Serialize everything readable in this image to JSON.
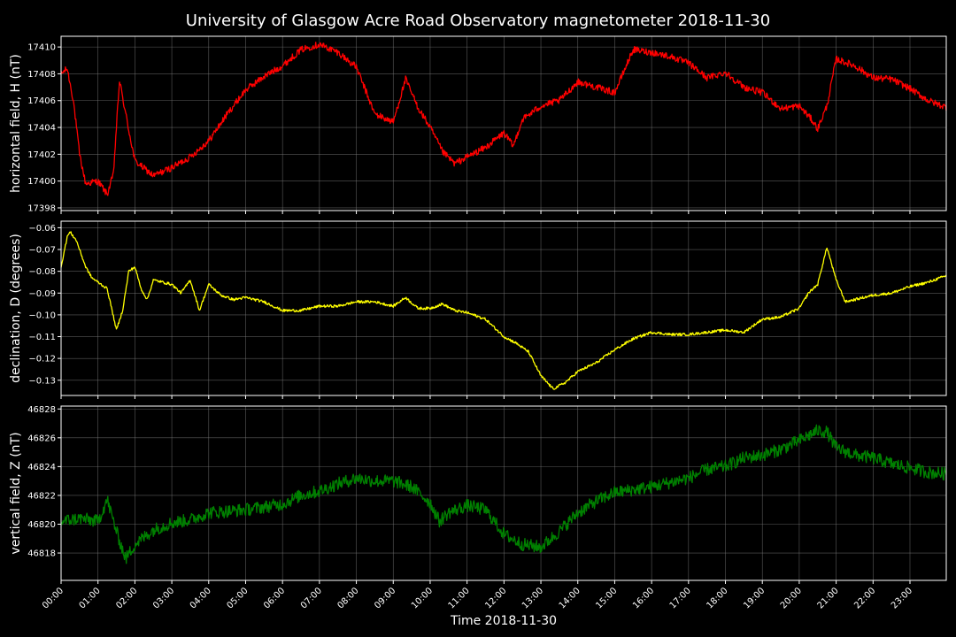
{
  "chart_data": {
    "type": "line",
    "title": "University of Glasgow Acre Road Observatory magnetometer 2018-11-30",
    "xlabel": "Time 2018-11-30",
    "x_ticks": [
      "00:00",
      "01:00",
      "02:00",
      "03:00",
      "04:00",
      "05:00",
      "06:00",
      "07:00",
      "08:00",
      "09:00",
      "10:00",
      "11:00",
      "12:00",
      "13:00",
      "14:00",
      "15:00",
      "16:00",
      "17:00",
      "18:00",
      "19:00",
      "20:00",
      "21:00",
      "22:00",
      "23:00"
    ],
    "grid": true,
    "panels": [
      {
        "ylabel": "horizontal field, H (nT)",
        "ylim": [
          17397.8,
          17410.8
        ],
        "y_ticks": [
          17398,
          17400,
          17402,
          17404,
          17406,
          17408,
          17410
        ],
        "y_tick_labels": [
          "17398",
          "17400",
          "17402",
          "17404",
          "17406",
          "17408",
          "17410"
        ],
        "color": "#ff0000",
        "noise": 0.25,
        "series": {
          "x": [
            "00:00",
            "00:10",
            "00:20",
            "00:30",
            "00:40",
            "01:00",
            "01:15",
            "01:25",
            "01:35",
            "01:45",
            "02:00",
            "02:30",
            "03:00",
            "03:30",
            "04:00",
            "04:30",
            "05:00",
            "05:30",
            "06:00",
            "06:30",
            "07:00",
            "07:30",
            "08:00",
            "08:30",
            "09:00",
            "09:20",
            "09:40",
            "10:00",
            "10:20",
            "10:40",
            "11:00",
            "11:30",
            "12:00",
            "12:15",
            "12:30",
            "13:00",
            "13:30",
            "14:00",
            "14:30",
            "15:00",
            "15:30",
            "16:00",
            "16:30",
            "17:00",
            "17:30",
            "18:00",
            "18:30",
            "19:00",
            "19:30",
            "20:00",
            "20:20",
            "20:30",
            "20:45",
            "21:00",
            "21:30",
            "22:00",
            "22:30",
            "23:00",
            "23:30",
            "23:59"
          ],
          "y": [
            17408,
            17408.4,
            17406,
            17402,
            17399.8,
            17400,
            17399,
            17400.5,
            17407.5,
            17405,
            17401.5,
            17400.4,
            17401,
            17401.8,
            17403,
            17405,
            17406.8,
            17407.8,
            17408.6,
            17409.8,
            17410.2,
            17409.6,
            17408.5,
            17405,
            17404.4,
            17407.6,
            17405.5,
            17404,
            17402.2,
            17401.3,
            17401.8,
            17402.5,
            17403.6,
            17402.6,
            17404.6,
            17405.6,
            17406,
            17407.4,
            17407,
            17406.6,
            17409.8,
            17409.6,
            17409.3,
            17408.8,
            17407.7,
            17408.1,
            17407,
            17406.6,
            17405.4,
            17405.6,
            17404.6,
            17403.9,
            17405.6,
            17409.1,
            17408.6,
            17407.7,
            17407.6,
            17406.9,
            17406,
            17405.5
          ]
        }
      },
      {
        "ylabel": "declination, D (degrees)",
        "ylim": [
          -0.137,
          -0.057
        ],
        "y_ticks": [
          -0.13,
          -0.12,
          -0.11,
          -0.1,
          -0.09,
          -0.08,
          -0.07,
          -0.06
        ],
        "y_tick_labels": [
          "−0.13",
          "−0.12",
          "−0.11",
          "−0.10",
          "−0.09",
          "−0.08",
          "−0.07",
          "−0.06"
        ],
        "color": "#ffff00",
        "noise": 0.0006,
        "series": {
          "x": [
            "00:00",
            "00:10",
            "00:15",
            "00:25",
            "00:40",
            "00:50",
            "01:00",
            "01:15",
            "01:30",
            "01:40",
            "01:50",
            "02:00",
            "02:10",
            "02:20",
            "02:30",
            "02:45",
            "03:00",
            "03:15",
            "03:30",
            "03:45",
            "04:00",
            "04:20",
            "04:40",
            "05:00",
            "05:30",
            "06:00",
            "06:30",
            "07:00",
            "07:30",
            "08:00",
            "08:30",
            "09:00",
            "09:20",
            "09:40",
            "10:00",
            "10:20",
            "10:40",
            "11:00",
            "11:30",
            "12:00",
            "12:20",
            "12:40",
            "13:00",
            "13:20",
            "13:40",
            "14:00",
            "14:30",
            "15:00",
            "15:30",
            "16:00",
            "16:30",
            "17:00",
            "17:30",
            "18:00",
            "18:30",
            "19:00",
            "19:30",
            "20:00",
            "20:15",
            "20:30",
            "20:45",
            "21:00",
            "21:15",
            "21:30",
            "22:00",
            "22:30",
            "23:00",
            "23:30",
            "23:59"
          ],
          "y": [
            -0.078,
            -0.064,
            -0.062,
            -0.066,
            -0.078,
            -0.083,
            -0.085,
            -0.088,
            -0.107,
            -0.098,
            -0.08,
            -0.078,
            -0.088,
            -0.093,
            -0.084,
            -0.085,
            -0.086,
            -0.09,
            -0.084,
            -0.098,
            -0.086,
            -0.091,
            -0.093,
            -0.092,
            -0.094,
            -0.098,
            -0.098,
            -0.096,
            -0.096,
            -0.094,
            -0.094,
            -0.096,
            -0.092,
            -0.097,
            -0.097,
            -0.095,
            -0.098,
            -0.099,
            -0.102,
            -0.11,
            -0.113,
            -0.117,
            -0.128,
            -0.134,
            -0.131,
            -0.126,
            -0.122,
            -0.116,
            -0.111,
            -0.108,
            -0.109,
            -0.109,
            -0.108,
            -0.107,
            -0.108,
            -0.102,
            -0.101,
            -0.097,
            -0.09,
            -0.086,
            -0.069,
            -0.084,
            -0.094,
            -0.093,
            -0.091,
            -0.09,
            -0.087,
            -0.085,
            -0.082
          ]
        }
      },
      {
        "ylabel": "vertical field, Z (nT)",
        "ylim": [
          46816.1,
          46828.2
        ],
        "y_ticks": [
          46818,
          46820,
          46822,
          46824,
          46826,
          46828
        ],
        "y_tick_labels": [
          "46818",
          "46820",
          "46822",
          "46824",
          "46826",
          "46828"
        ],
        "color": "#008000",
        "noise": 0.45,
        "series": {
          "x": [
            "00:00",
            "00:30",
            "01:00",
            "01:15",
            "01:30",
            "01:45",
            "02:00",
            "02:30",
            "03:00",
            "03:30",
            "04:00",
            "04:30",
            "05:00",
            "05:30",
            "06:00",
            "06:30",
            "07:00",
            "07:30",
            "08:00",
            "08:30",
            "09:00",
            "09:30",
            "10:00",
            "10:15",
            "10:30",
            "11:00",
            "11:30",
            "12:00",
            "12:30",
            "13:00",
            "13:30",
            "14:00",
            "14:30",
            "15:00",
            "15:30",
            "16:00",
            "16:30",
            "17:00",
            "17:30",
            "18:00",
            "18:30",
            "19:00",
            "19:30",
            "20:00",
            "20:30",
            "20:45",
            "21:00",
            "21:30",
            "22:00",
            "22:30",
            "23:00",
            "23:30",
            "23:59"
          ],
          "y": [
            46820.2,
            46820.4,
            46820.2,
            46821.7,
            46819.5,
            46817.6,
            46818.6,
            46819.6,
            46820.1,
            46820.3,
            46820.8,
            46820.9,
            46821,
            46821.2,
            46821.4,
            46822,
            46822.3,
            46822.8,
            46823.2,
            46823,
            46823,
            46822.6,
            46821.5,
            46820.2,
            46820.8,
            46821.3,
            46821,
            46819.3,
            46818.6,
            46818.4,
            46819.5,
            46820.8,
            46821.6,
            46822.2,
            46822.4,
            46822.6,
            46822.9,
            46823.2,
            46823.8,
            46824,
            46824.6,
            46824.8,
            46825.2,
            46825.8,
            46826.5,
            46826.4,
            46825.3,
            46824.8,
            46824.6,
            46824.2,
            46823.9,
            46823.6,
            46823.5
          ]
        }
      }
    ]
  }
}
